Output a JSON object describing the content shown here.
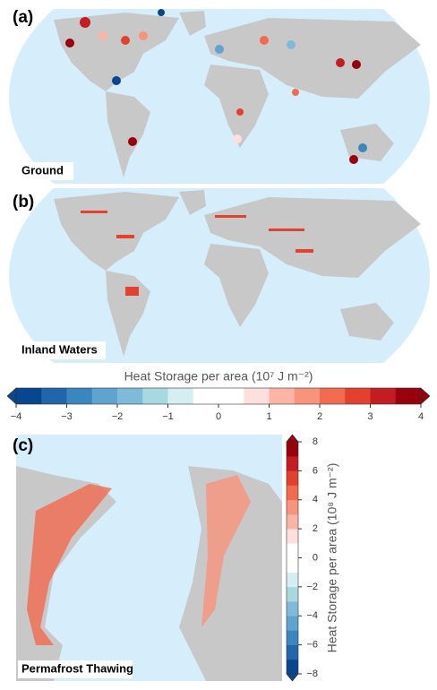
{
  "panels": [
    {
      "tag": "(a)",
      "label": "Ground"
    },
    {
      "tag": "(b)",
      "label": "Inland Waters"
    },
    {
      "tag": "(c)",
      "label": "Permafrost Thawing"
    }
  ],
  "colorbars": [
    {
      "title": "Heat Storage per area (10⁷ J m⁻²)",
      "orientation": "horizontal",
      "lim": [
        -4,
        4
      ],
      "ticks": [
        {
          "value": -4,
          "label": "−4"
        },
        {
          "value": -3,
          "label": "−3"
        },
        {
          "value": -2,
          "label": "−2"
        },
        {
          "value": -1,
          "label": "−1"
        },
        0,
        1,
        2,
        3,
        4
      ],
      "colors": [
        "#08468f",
        "#2166ac",
        "#3a86bf",
        "#5fa3cf",
        "#7fbad9",
        "#a8d8e0",
        "#d4eef2",
        "#ffffff",
        "#ffffff",
        "#fde0dd",
        "#fbb4a6",
        "#f8937c",
        "#f26a50",
        "#e3412f",
        "#c51b23",
        "#99000d"
      ]
    },
    {
      "title": "Heat Storage per area (10⁸ J m⁻²)",
      "orientation": "vertical",
      "lim": [
        -8,
        8
      ],
      "ticks": [
        {
          "value": -8,
          "label": "−8"
        },
        {
          "value": -6,
          "label": "−6"
        },
        {
          "value": -4,
          "label": "−4"
        },
        {
          "value": -2,
          "label": "−2"
        },
        0,
        2,
        4,
        6,
        8
      ],
      "colors": [
        "#08468f",
        "#2166ac",
        "#3a86bf",
        "#5fa3cf",
        "#7fbad9",
        "#a8d8e0",
        "#d4eef2",
        "#ffffff",
        "#ffffff",
        "#fde0dd",
        "#fbb4a6",
        "#f8937c",
        "#f26a50",
        "#e3412f",
        "#c51b23",
        "#99000d"
      ]
    }
  ]
}
